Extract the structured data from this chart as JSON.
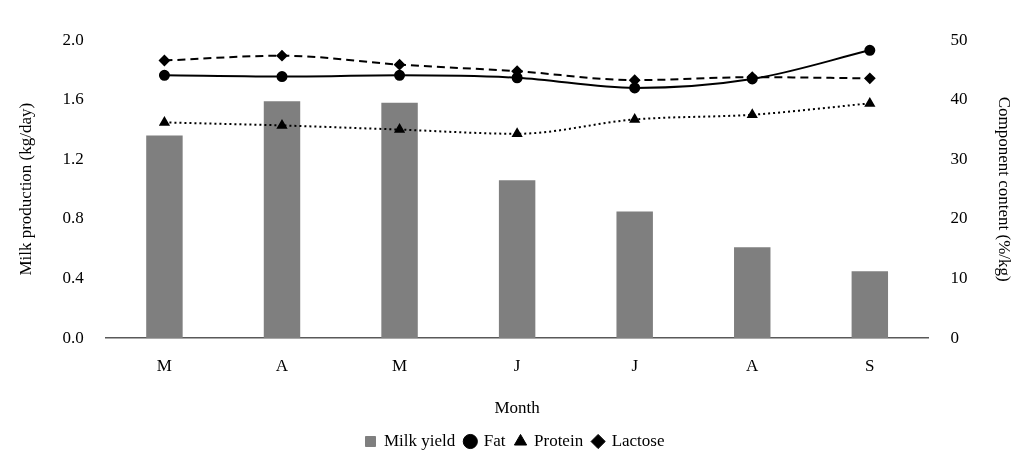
{
  "chart_data": {
    "type": "bar",
    "xlabel": "Month",
    "ylabel": "Milk production (kg/day)",
    "y2label": "Component content (%/kg)",
    "categories": [
      "M",
      "A",
      "M",
      "J",
      "J",
      "A",
      "S"
    ],
    "series": [
      {
        "name": "Milk yield",
        "color": "#7f7f7f",
        "values": [
          1.36,
          1.59,
          1.58,
          1.06,
          0.85,
          0.61,
          0.45
        ]
      },
      {
        "name": "Fat",
        "type": "line",
        "axis": "y2",
        "color": "#000000",
        "marker": "circle",
        "line_style": "solid",
        "values": [
          44.1,
          43.9,
          44.1,
          43.7,
          42.0,
          43.5,
          48.3
        ]
      },
      {
        "name": "Protein",
        "type": "line",
        "axis": "y2",
        "color": "#000000",
        "marker": "triangle",
        "line_style": "dotted",
        "values": [
          36.2,
          35.7,
          35.0,
          34.3,
          36.7,
          37.5,
          39.4
        ]
      },
      {
        "name": "Lactose",
        "type": "line",
        "axis": "y2",
        "color": "#000000",
        "marker": "diamond",
        "line_style": "dashed",
        "values": [
          46.6,
          47.4,
          45.9,
          44.8,
          43.3,
          43.8,
          43.6
        ]
      }
    ],
    "ylim": [
      0,
      2.0
    ],
    "yticks": [
      {
        "value": 0,
        "label": "0.0"
      },
      {
        "value": 0.4,
        "label": "0.4"
      },
      {
        "value": 0.8,
        "label": "0.8"
      },
      {
        "value": 1.2,
        "label": "1.2"
      },
      {
        "value": 1.6,
        "label": "1.6"
      },
      {
        "value": 2.0,
        "label": "2.0"
      }
    ],
    "y2lim": [
      0,
      50
    ],
    "y2ticks": [
      0,
      10,
      20,
      30,
      40,
      50
    ],
    "grid": false,
    "legend": "bottom"
  }
}
